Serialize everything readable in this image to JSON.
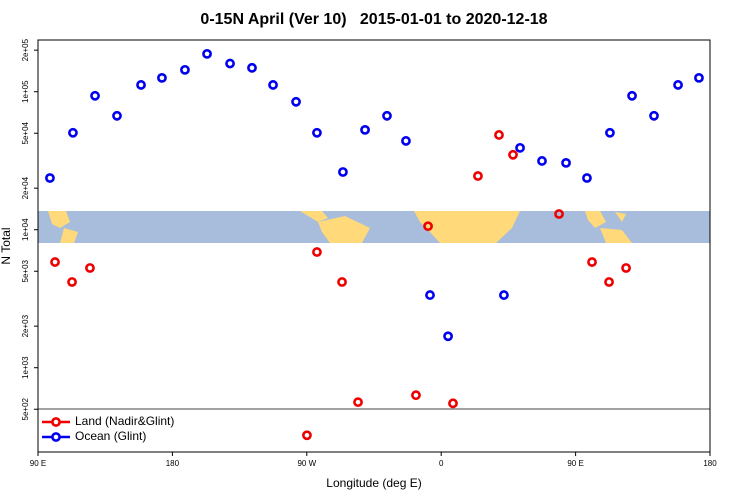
{
  "chart_data": {
    "type": "scatter",
    "title": "0-15N April (Ver 10)   2015-01-01 to 2020-12-18",
    "x_label": "Longitude (deg E)",
    "y_label": "N Total",
    "log_y": true,
    "legend": "lower left",
    "xlim": [
      90,
      540
    ],
    "ylim": [
      245,
      237000
    ],
    "xticks": [
      {
        "value": 90,
        "label": "90 E"
      },
      {
        "value": 180,
        "label": "180"
      },
      {
        "value": 270,
        "label": "90 W"
      },
      {
        "value": 360,
        "label": "0"
      },
      {
        "value": 450,
        "label": "90 E"
      },
      {
        "value": 540,
        "label": "180"
      }
    ],
    "yticks": [
      {
        "value": 500,
        "label": "5e+02"
      },
      {
        "value": 1000,
        "label": "1e+03"
      },
      {
        "value": 2000,
        "label": "2e+03"
      },
      {
        "value": 5000,
        "label": "5e+03"
      },
      {
        "value": 10000,
        "label": "1e+04"
      },
      {
        "value": 20000,
        "label": "2e+04"
      },
      {
        "value": 50000,
        "label": "5e+04"
      },
      {
        "value": 100000,
        "label": "1e+05"
      },
      {
        "value": 200000,
        "label": "2e+05"
      }
    ],
    "series": [
      {
        "name": "Land (Nadir&Glint)",
        "color": "#ee0000",
        "x": [
          101.4,
          112.8,
          124.8,
          270.1,
          276.8,
          293.6,
          304.3,
          343.1,
          351.2,
          367.9,
          384.6,
          398.7,
          408.1,
          438.9,
          461,
          472.4,
          483.8
        ],
        "values": [
          5830,
          4180,
          5280,
          324,
          6890,
          4180,
          563,
          632,
          10600,
          552,
          24500,
          48600,
          34900,
          13000,
          5830,
          4180,
          5280
        ]
      },
      {
        "name": "Ocean (Glint)",
        "color": "#0000ee",
        "x": [
          98,
          113.4,
          128.2,
          142.9,
          159,
          173,
          188.4,
          203.2,
          218.6,
          233.3,
          247.4,
          262.8,
          276.8,
          294.2,
          309,
          323.7,
          336.4,
          352.5,
          364.6,
          402,
          412.8,
          427.5,
          443.6,
          457.6,
          473,
          487.8,
          502.5,
          518.6,
          532.6
        ],
        "values": [
          23700,
          50400,
          93400,
          66900,
          112000,
          126000,
          144000,
          188000,
          160000,
          149000,
          112000,
          84500,
          50400,
          26200,
          52900,
          66900,
          44000,
          3360,
          1690,
          3360,
          39200,
          31500,
          30500,
          23700,
          50400,
          93400,
          66900,
          112000,
          126000
        ]
      }
    ]
  }
}
